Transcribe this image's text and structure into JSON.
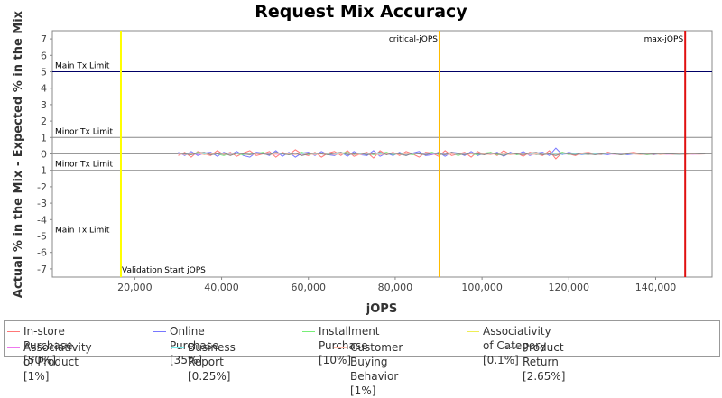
{
  "chart_data": {
    "type": "line",
    "title": "Request Mix Accuracy",
    "xlabel": "jOPS",
    "ylabel": "Actual % in the Mix - Expected % in the Mix",
    "xlim": [
      1000,
      153000
    ],
    "ylim": [
      -7.5,
      7.5
    ],
    "xticks": [
      20000,
      40000,
      60000,
      80000,
      100000,
      120000,
      140000
    ],
    "xtick_labels": [
      "20,000",
      "40,000",
      "60,000",
      "80,000",
      "100,000",
      "120,000",
      "140,000"
    ],
    "yticks": [
      7,
      6,
      5,
      4,
      3,
      2,
      1,
      0,
      -1,
      -2,
      -3,
      -4,
      -5,
      -6,
      -7
    ],
    "ytick_labels": [
      "7",
      "6",
      "5",
      "4",
      "3",
      "2",
      "1",
      "0",
      "-1",
      "-2",
      "-3",
      "-4",
      "-5",
      "-6",
      "-7"
    ],
    "grid": false,
    "legend_position": "bottom",
    "limit_lines": [
      {
        "label": "Main Tx Limit",
        "value": 5,
        "color": "#000066"
      },
      {
        "label": "Minor Tx Limit",
        "value": 1,
        "color": "#888888"
      },
      {
        "label": "Minor Tx Limit",
        "value": -1,
        "color": "#888888"
      },
      {
        "label": "Main Tx Limit",
        "value": -5,
        "color": "#000066"
      }
    ],
    "markers": [
      {
        "label": "Validation Start jOPS",
        "x": 16800,
        "color": "#ffff00",
        "label_pos": "bottom"
      },
      {
        "label": "critical-jOPS",
        "x": 90200,
        "color": "#ffbb00",
        "label_pos": "top"
      },
      {
        "label": "max-jOPS",
        "x": 146800,
        "color": "#e01010",
        "label_pos": "top"
      }
    ],
    "x_start": 30000,
    "x_step": 1500,
    "series": [
      {
        "name": "In-store Purchase [50%]",
        "color": "#ff7777",
        "values": [
          -0.1,
          0.1,
          -0.2,
          0.15,
          0.0,
          -0.1,
          0.2,
          -0.05,
          0.1,
          -0.15,
          0.05,
          0.2,
          -0.1,
          0.0,
          0.15,
          -0.2,
          0.1,
          -0.05,
          0.25,
          0.0,
          -0.1,
          0.1,
          -0.2,
          0.05,
          0.15,
          -0.1,
          0.2,
          -0.15,
          0.0,
          0.1,
          -0.25,
          0.2,
          -0.05,
          0.1,
          -0.1,
          0.15,
          0.0,
          -0.2,
          0.1,
          0.05,
          -0.15,
          0.2,
          -0.1,
          0.0,
          0.1,
          -0.2,
          0.15,
          -0.05,
          0.1,
          -0.1,
          0.2,
          -0.05,
          0.05,
          -0.15,
          0.1,
          0.0,
          -0.1,
          0.2,
          -0.3,
          0.1,
          0.0,
          -0.1,
          0.05,
          0.1,
          0.0,
          -0.05,
          0.1,
          0.0,
          -0.05,
          0.05,
          0.1,
          0.0,
          0.05,
          -0.05,
          0.02,
          0.0,
          -0.02,
          0.0,
          0.02,
          0.0,
          -0.01,
          0.0
        ]
      },
      {
        "name": "Online Purchase [35%]",
        "color": "#7777ff",
        "values": [
          0.1,
          -0.1,
          0.15,
          -0.1,
          0.05,
          0.1,
          -0.15,
          0.1,
          -0.05,
          0.15,
          -0.1,
          -0.2,
          0.1,
          0.05,
          -0.1,
          0.2,
          -0.15,
          0.1,
          -0.2,
          0.05,
          0.1,
          -0.1,
          0.15,
          -0.05,
          -0.1,
          0.1,
          -0.15,
          0.15,
          -0.05,
          -0.1,
          0.2,
          -0.15,
          0.05,
          -0.1,
          0.1,
          -0.1,
          0.05,
          0.15,
          -0.1,
          -0.05,
          0.1,
          -0.15,
          0.1,
          0.05,
          -0.1,
          0.15,
          -0.1,
          0.05,
          -0.05,
          0.1,
          -0.15,
          0.1,
          -0.05,
          0.15,
          -0.1,
          0.05,
          0.1,
          -0.1,
          0.35,
          -0.05,
          0.1,
          0.0,
          -0.05,
          0.0,
          0.05,
          0.0,
          -0.05,
          0.05,
          0.0,
          -0.05,
          0.0,
          0.05,
          0.0,
          -0.02,
          0.0,
          0.02,
          0.0,
          -0.01,
          0.0,
          0.01,
          0.0,
          0.0
        ]
      },
      {
        "name": "Installment Purchase [10%]",
        "color": "#77ee77",
        "values": [
          0.05,
          0.0,
          -0.05,
          0.1,
          -0.05,
          0.05,
          0.0,
          -0.1,
          0.05,
          0.0,
          -0.05,
          0.05,
          0.0,
          0.1,
          -0.05,
          0.0,
          0.05,
          -0.05,
          0.0,
          0.1,
          -0.05,
          0.0,
          0.05,
          -0.05,
          0.0,
          0.05,
          0.1,
          -0.05,
          0.0,
          0.05,
          -0.05,
          0.0,
          0.1,
          -0.05,
          0.05,
          0.0,
          -0.05,
          0.05,
          0.0,
          0.1,
          -0.05,
          0.0,
          0.05,
          -0.1,
          0.05,
          0.0,
          -0.05,
          0.05,
          0.1,
          -0.05,
          0.0,
          0.05,
          -0.05,
          0.0,
          0.05,
          -0.05,
          0.0,
          0.05,
          0.0,
          0.1,
          -0.05,
          0.05,
          0.0,
          -0.05,
          0.05,
          0.0,
          0.0,
          0.05,
          -0.05,
          0.0,
          0.05,
          0.0,
          -0.05,
          0.0,
          0.05,
          0.0,
          0.0,
          -0.02,
          0.0,
          0.02,
          0.0,
          0.0
        ]
      },
      {
        "name": "Associativity of Category [0.1%]",
        "color": "#eeee55",
        "values": [
          0.0,
          0.0,
          0.0,
          0.0,
          0.0,
          0.0,
          0.0,
          0.0,
          0.0,
          0.0,
          0.0,
          0.0,
          0.0,
          0.0,
          0.0,
          0.0,
          0.0,
          0.0,
          0.0,
          0.0,
          0.0,
          0.0,
          0.0,
          0.0,
          0.0,
          0.0,
          0.0,
          0.0,
          0.0,
          0.0,
          0.0,
          0.0,
          0.0,
          0.0,
          0.0,
          0.0,
          0.0,
          0.0,
          0.0,
          0.0,
          0.0,
          0.0,
          0.0,
          0.0,
          0.0,
          0.0,
          0.0,
          0.0,
          0.0,
          0.0,
          0.0,
          0.0,
          0.0,
          0.0,
          0.0,
          0.0,
          0.0,
          0.0,
          0.0,
          0.0,
          0.0,
          0.0,
          0.0,
          0.0,
          0.0,
          0.0,
          0.0,
          0.0,
          0.0,
          0.0,
          0.0,
          0.0,
          0.0,
          0.0,
          0.0,
          0.0,
          0.0,
          0.0,
          0.0,
          0.0,
          0.0,
          0.0
        ]
      },
      {
        "name": "Associativity of Product [1%]",
        "color": "#ee77ee",
        "values": [
          0.0,
          0.02,
          0.0,
          -0.02,
          0.0,
          0.02,
          0.0,
          -0.02,
          0.0,
          0.02,
          0.0,
          -0.02,
          0.0,
          0.02,
          0.0,
          -0.02,
          0.0,
          0.02,
          0.0,
          -0.02,
          0.0,
          0.02,
          0.0,
          -0.02,
          0.0,
          0.02,
          0.0,
          -0.02,
          0.0,
          0.02,
          0.0,
          -0.02,
          0.0,
          0.02,
          0.0,
          -0.02,
          0.0,
          0.02,
          0.0,
          -0.02,
          0.0,
          0.02,
          0.0,
          -0.02,
          0.0,
          0.02,
          0.0,
          -0.02,
          0.0,
          0.02,
          0.0,
          -0.02,
          0.0,
          0.02,
          0.0,
          -0.02,
          0.0,
          0.02,
          0.0,
          -0.02,
          0.0,
          0.02,
          0.0,
          -0.02,
          0.0,
          0.02,
          0.0,
          -0.02,
          0.0,
          0.02,
          0.0,
          -0.02,
          0.0,
          0.02,
          0.0,
          -0.02,
          0.0,
          0.02,
          0.0,
          -0.02,
          0.0,
          0.0
        ]
      },
      {
        "name": "Business Report [0.25%]",
        "color": "#77eeee",
        "values": [
          0.02,
          0.0,
          -0.02,
          0.02,
          0.0,
          -0.02,
          0.02,
          0.0,
          -0.02,
          0.02,
          0.0,
          -0.02,
          0.02,
          0.0,
          -0.02,
          0.02,
          0.0,
          -0.02,
          0.02,
          0.0,
          -0.02,
          0.02,
          0.0,
          -0.02,
          0.02,
          0.0,
          -0.02,
          0.02,
          0.0,
          -0.02,
          0.02,
          0.0,
          -0.02,
          0.02,
          0.0,
          -0.02,
          0.02,
          0.0,
          -0.02,
          0.02,
          0.0,
          -0.02,
          0.02,
          0.0,
          -0.02,
          0.02,
          0.0,
          -0.02,
          0.02,
          0.0,
          -0.02,
          0.02,
          0.0,
          -0.02,
          0.02,
          0.0,
          -0.02,
          0.02,
          0.0,
          -0.02,
          0.02,
          0.0,
          -0.02,
          0.02,
          0.0,
          -0.02,
          0.02,
          0.0,
          -0.02,
          0.02,
          0.0,
          -0.02,
          0.02,
          0.0,
          -0.02,
          0.02,
          0.0,
          -0.02,
          0.02,
          0.0,
          0.0,
          0.0
        ]
      },
      {
        "name": "Customer Buying Behavior [1%]",
        "color": "#ffbbaa",
        "values": [
          0.05,
          -0.05,
          0.0,
          0.05,
          -0.05,
          0.0,
          0.05,
          0.0,
          -0.05,
          0.05,
          0.0,
          -0.05,
          0.0,
          0.05,
          -0.05,
          0.0,
          0.05,
          0.0,
          -0.05,
          0.05,
          0.0,
          -0.05,
          0.0,
          0.05,
          -0.05,
          0.0,
          0.05,
          0.0,
          -0.05,
          0.05,
          0.0,
          -0.05,
          0.0,
          0.05,
          -0.05,
          0.0,
          0.05,
          0.0,
          -0.05,
          0.05,
          0.0,
          -0.05,
          0.0,
          0.05,
          -0.05,
          0.0,
          0.05,
          0.0,
          -0.05,
          0.05,
          0.0,
          -0.05,
          0.0,
          0.05,
          -0.05,
          0.0,
          0.05,
          0.0,
          -0.05,
          0.05,
          0.0,
          -0.05,
          0.0,
          0.05,
          -0.05,
          0.0,
          0.05,
          0.0,
          -0.05,
          0.05,
          0.0,
          -0.05,
          0.0,
          0.05,
          -0.05,
          0.0,
          0.05,
          0.0,
          -0.05,
          0.0,
          0.0,
          0.0
        ]
      },
      {
        "name": "Product Return [2.65%]",
        "color": "#888888",
        "values": [
          0.05,
          0.0,
          -0.05,
          0.05,
          0.1,
          -0.05,
          0.0,
          0.05,
          -0.1,
          0.05,
          0.0,
          -0.05,
          0.05,
          0.0,
          -0.05,
          0.1,
          0.0,
          -0.05,
          0.05,
          -0.1,
          0.0,
          0.05,
          0.0,
          -0.05,
          0.05,
          0.1,
          -0.05,
          0.0,
          0.05,
          -0.05,
          0.0,
          0.1,
          -0.05,
          0.05,
          0.0,
          -0.1,
          0.05,
          0.0,
          -0.05,
          0.05,
          0.0,
          -0.05,
          0.1,
          0.0,
          -0.05,
          0.05,
          0.0,
          -0.05,
          0.05,
          0.0,
          -0.1,
          0.05,
          0.0,
          -0.05,
          0.05,
          0.1,
          -0.05,
          0.0,
          -0.1,
          0.05,
          0.0,
          -0.05,
          0.05,
          0.0,
          -0.05,
          0.0,
          0.05,
          0.0,
          -0.05,
          0.0,
          0.05,
          0.0,
          -0.02,
          0.0,
          0.02,
          0.0,
          0.0,
          -0.02,
          0.0,
          0.02,
          0.0,
          0.0
        ]
      }
    ]
  }
}
